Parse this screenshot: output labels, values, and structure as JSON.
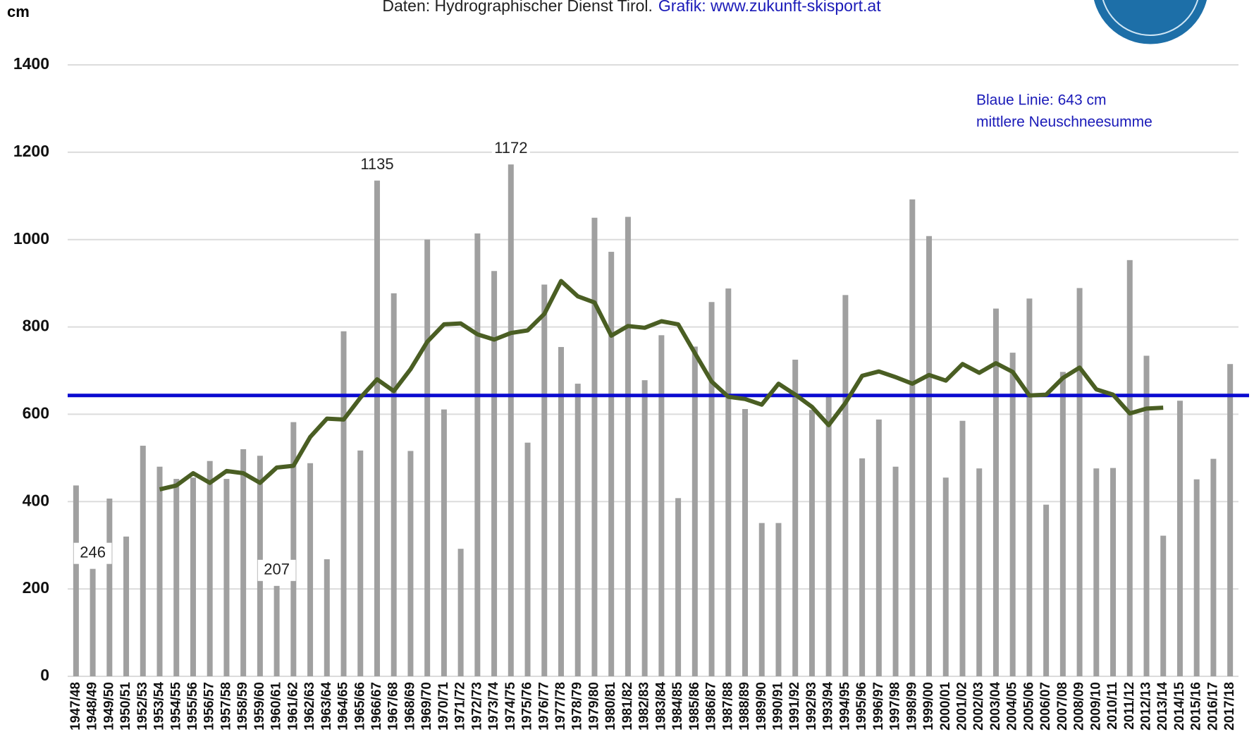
{
  "chart_data": {
    "type": "bar",
    "y_label": "cm",
    "source": "Daten: Hydrographischer Dienst Tirol.",
    "credit": "Grafik: www.zukunft-skisport.at",
    "annotation": [
      "Blaue Linie: 643 cm",
      "mittlere Neuschneesumme"
    ],
    "categories": [
      "1947/48",
      "1948/49",
      "1949/50",
      "1950/51",
      "1952/53",
      "1953/54",
      "1954/55",
      "1955/56",
      "1956/57",
      "1957/58",
      "1958/59",
      "1959/60",
      "1960/61",
      "1961/62",
      "1962/63",
      "1963/64",
      "1964/65",
      "1965/66",
      "1966/67",
      "1967/68",
      "1968/69",
      "1969/70",
      "1970/71",
      "1971/72",
      "1972/73",
      "1973/74",
      "1974/75",
      "1975/76",
      "1976/77",
      "1977/78",
      "1978/79",
      "1979/80",
      "1980/81",
      "1981/82",
      "1982/83",
      "1983/84",
      "1984/85",
      "1985/86",
      "1986/87",
      "1987/88",
      "1988/89",
      "1989/90",
      "1990/91",
      "1991/92",
      "1992/93",
      "1993/94",
      "1994/95",
      "1995/96",
      "1996/97",
      "1997/98",
      "1998/99",
      "1999/00",
      "2000/01",
      "2001/02",
      "2002/03",
      "2003/04",
      "2004/05",
      "2005/06",
      "2006/07",
      "2007/08",
      "2008/09",
      "2009/10",
      "2010/11",
      "2011/12",
      "2012/13",
      "2013/14",
      "2014/15",
      "2015/16",
      "2016/17",
      "2017/18"
    ],
    "series": [
      {
        "type": "bar",
        "color": "#a0a0a0",
        "values": [
          437,
          246,
          407,
          320,
          528,
          480,
          452,
          455,
          493,
          452,
          520,
          505,
          207,
          582,
          488,
          268,
          790,
          517,
          1135,
          877,
          516,
          1000,
          611,
          292,
          1014,
          928,
          1172,
          535,
          897,
          754,
          670,
          1050,
          972,
          1052,
          678,
          781,
          408,
          755,
          857,
          888,
          612,
          351,
          351,
          725,
          610,
          645,
          873,
          499,
          588,
          480,
          1092,
          1008,
          455,
          585,
          476,
          842,
          741,
          865,
          393,
          697,
          889,
          476,
          477,
          953,
          734,
          322,
          631,
          451,
          498,
          715
        ],
        "data_label_indices": [
          1,
          12,
          18,
          26
        ]
      },
      {
        "type": "line",
        "color": "#4a5e23",
        "values": [
          null,
          null,
          null,
          null,
          null,
          428,
          437,
          465,
          443,
          470,
          465,
          443,
          478,
          482,
          548,
          590,
          588,
          638,
          680,
          653,
          703,
          766,
          806,
          808,
          783,
          771,
          786,
          792,
          830,
          905,
          870,
          856,
          780,
          802,
          798,
          813,
          806,
          740,
          675,
          640,
          635,
          622,
          670,
          645,
          617,
          575,
          626,
          688,
          698,
          685,
          670,
          690,
          677,
          715,
          695,
          717,
          697,
          643,
          645,
          683,
          707,
          657,
          645,
          602,
          613,
          615,
          null,
          null,
          null,
          null
        ]
      }
    ],
    "hlines": [
      {
        "value": 643,
        "color": "#0a0ad0"
      }
    ],
    "ylim": [
      0,
      1400
    ],
    "yticks": [
      0,
      200,
      400,
      600,
      800,
      1000,
      1200,
      1400
    ],
    "grid": true
  }
}
